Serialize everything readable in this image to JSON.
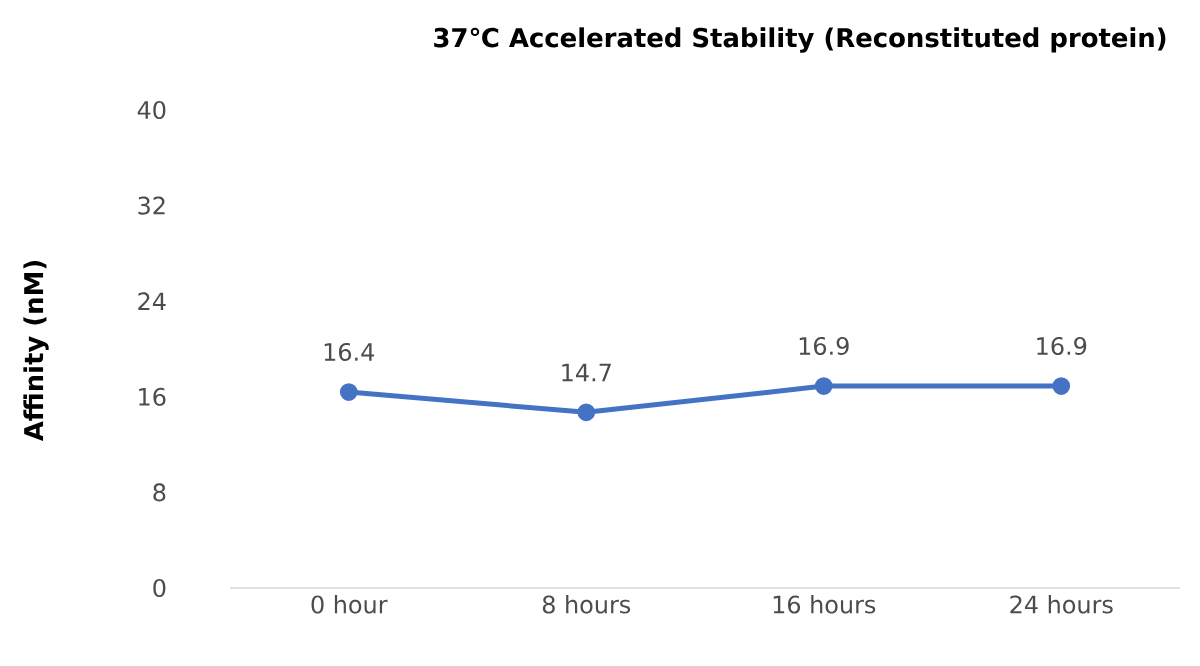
{
  "chart_data": {
    "type": "line",
    "title": "37℃ Accelerated Stability (Reconstituted protein)",
    "ylabel": "Affinity (nM)",
    "categories": [
      "0 hour",
      "8 hours",
      "16 hours",
      "24 hours"
    ],
    "series": [
      {
        "color": "#4472c4",
        "values": [
          16.4,
          14.7,
          16.9,
          16.9
        ]
      }
    ],
    "ylim": [
      0,
      40
    ],
    "yticks": [
      0,
      8,
      16,
      24,
      32,
      40
    ],
    "data_labels": true,
    "marker": "circle",
    "grid": false
  }
}
